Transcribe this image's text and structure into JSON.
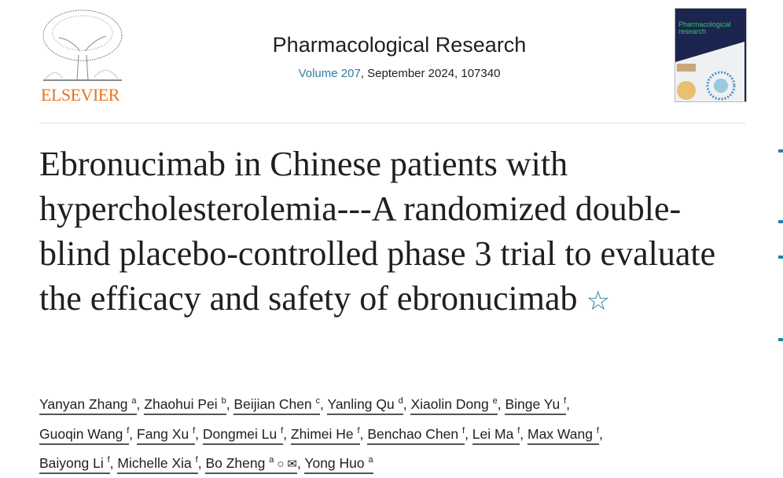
{
  "publisher": {
    "name": "ELSEVIER"
  },
  "journal": {
    "title": "Pharmacological Research",
    "volume_link": "Volume 207",
    "meta_rest": ", September 2024, 107340",
    "cover_title": "Pharmacological research"
  },
  "article": {
    "title": "Ebronucimab in Chinese patients with hypercholesterolemia---A randomized double-blind placebo-controlled phase 3 trial to evaluate the efficacy and safety of ebronucimab",
    "star_icon": "☆"
  },
  "authors": [
    {
      "name": "Yanyan Zhang",
      "aff": "a",
      "sep": ", "
    },
    {
      "name": "Zhaohui Pei",
      "aff": "b",
      "sep": ", "
    },
    {
      "name": "Beijian Chen",
      "aff": "c",
      "sep": ", "
    },
    {
      "name": "Yanling Qu",
      "aff": "d",
      "sep": ", "
    },
    {
      "name": "Xiaolin Dong",
      "aff": "e",
      "sep": ", "
    },
    {
      "name": "Binge Yu",
      "aff": "f",
      "sep": ", "
    },
    {
      "name": "Guoqin Wang",
      "aff": "f",
      "sep": ", "
    },
    {
      "name": "Fang Xu",
      "aff": "f",
      "sep": ", "
    },
    {
      "name": "Dongmei Lu",
      "aff": "f",
      "sep": ", "
    },
    {
      "name": "Zhimei He",
      "aff": "f",
      "sep": ", "
    },
    {
      "name": "Benchao Chen",
      "aff": "f",
      "sep": ", "
    },
    {
      "name": "Lei Ma",
      "aff": "f",
      "sep": ", "
    },
    {
      "name": "Max Wang",
      "aff": "f",
      "sep": ", "
    },
    {
      "name": "Baiyong Li",
      "aff": "f",
      "sep": ", "
    },
    {
      "name": "Michelle Xia",
      "aff": "f",
      "sep": ", "
    },
    {
      "name": "Bo Zheng",
      "aff": "a",
      "sep": ", ",
      "icons": [
        "person-icon",
        "envelope-icon"
      ]
    },
    {
      "name": "Yong Huo",
      "aff": "a",
      "sep": ""
    }
  ]
}
